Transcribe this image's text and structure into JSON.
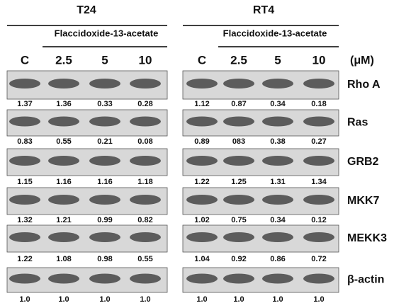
{
  "unit": "(μM)",
  "proteins": [
    "Rho A",
    "Ras",
    "GRB2",
    "MKK7",
    "MEKK3",
    "β-actin"
  ],
  "panels": [
    {
      "title": "T24",
      "treatment": "Flaccidoxide-13-acetate",
      "lanes": [
        "C",
        "2.5",
        "5",
        "10"
      ],
      "rows": [
        [
          "1.37",
          "1.36",
          "0.33",
          "0.28"
        ],
        [
          "0.83",
          "0.55",
          "0.21",
          "0.08"
        ],
        [
          "1.15",
          "1.16",
          "1.16",
          "1.18"
        ],
        [
          "1.32",
          "1.21",
          "0.99",
          "0.82"
        ],
        [
          "1.22",
          "1.08",
          "0.98",
          "0.55"
        ],
        [
          "1.0",
          "1.0",
          "1.0",
          "1.0"
        ]
      ]
    },
    {
      "title": "RT4",
      "treatment": "Flaccidoxide-13-acetate",
      "lanes": [
        "C",
        "2.5",
        "5",
        "10"
      ],
      "rows": [
        [
          "1.12",
          "0.87",
          "0.34",
          "0.18"
        ],
        [
          "0.89",
          "083",
          "0.38",
          "0.27"
        ],
        [
          "1.22",
          "1.25",
          "1.31",
          "1.34"
        ],
        [
          "1.02",
          "0.75",
          "0.34",
          "0.12"
        ],
        [
          "1.04",
          "0.92",
          "0.86",
          "0.72"
        ],
        [
          "1.0",
          "1.0",
          "1.0",
          "1.0"
        ]
      ]
    }
  ]
}
